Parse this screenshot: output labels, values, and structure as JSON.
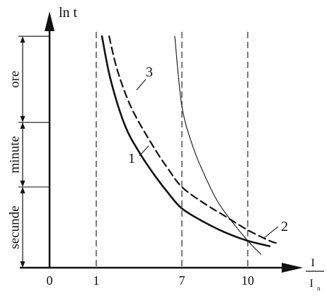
{
  "chart_data": {
    "type": "line",
    "y_axis_label": "ln t",
    "x_axis_label": {
      "numerator": "I",
      "denominator": "I",
      "subscript": "n"
    },
    "x_ticks": [
      {
        "value": 0,
        "label": "0"
      },
      {
        "value": 1,
        "label": "1"
      },
      {
        "value": 7,
        "label": "7"
      },
      {
        "value": 10,
        "label": "10"
      }
    ],
    "vertical_reference_lines": [
      1,
      7,
      10
    ],
    "x_range_units": [
      0,
      10.6
    ],
    "time_bands": [
      {
        "label": "ore",
        "from": 0.54,
        "to": 0.86
      },
      {
        "label": "minute",
        "from": 0.3,
        "to": 0.54
      },
      {
        "label": "secunde",
        "from": 0.0,
        "to": 0.3
      }
    ],
    "series": [
      {
        "name": "1",
        "style": "solid-thick",
        "points": [
          [
            1.4,
            0.86
          ],
          [
            2.0,
            0.7
          ],
          [
            3.0,
            0.53
          ],
          [
            4.0,
            0.43
          ],
          [
            5.0,
            0.35
          ],
          [
            6.0,
            0.28
          ],
          [
            7.0,
            0.22
          ],
          [
            8.0,
            0.17
          ],
          [
            9.0,
            0.13
          ],
          [
            10.0,
            0.1
          ],
          [
            11.0,
            0.08
          ]
        ]
      },
      {
        "name": "3",
        "style": "dashed",
        "points": [
          [
            1.9,
            0.86
          ],
          [
            2.5,
            0.73
          ],
          [
            3.5,
            0.59
          ],
          [
            5.0,
            0.45
          ],
          [
            6.0,
            0.37
          ],
          [
            7.0,
            0.3
          ],
          [
            8.0,
            0.24
          ],
          [
            9.0,
            0.19
          ],
          [
            10.0,
            0.14
          ],
          [
            11.0,
            0.1
          ],
          [
            11.4,
            0.09
          ]
        ]
      },
      {
        "name": "2",
        "style": "solid-thin",
        "points": [
          [
            6.5,
            0.86
          ],
          [
            7.0,
            0.6
          ],
          [
            7.5,
            0.45
          ],
          [
            8.0,
            0.35
          ],
          [
            8.6,
            0.25
          ],
          [
            9.2,
            0.18
          ],
          [
            10.0,
            0.1
          ],
          [
            10.6,
            0.05
          ]
        ]
      }
    ],
    "curve_labels": [
      {
        "text": "1",
        "series": "1"
      },
      {
        "text": "2",
        "series": "2"
      },
      {
        "text": "3",
        "series": "3"
      }
    ],
    "colors": {
      "ink": "#111111",
      "background": "#ffffff"
    }
  }
}
